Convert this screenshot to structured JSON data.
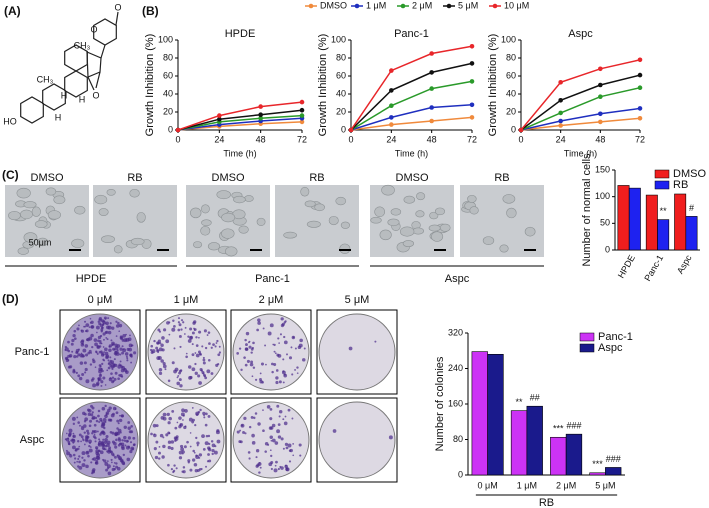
{
  "panel_labels": [
    "(A)",
    "(B)",
    "(C)",
    "(D)"
  ],
  "structure_labels": [
    "O",
    "O",
    "CH₃",
    "CH₃",
    "H",
    "H",
    "H",
    "HO",
    "O"
  ],
  "micrographs": {
    "conditions": [
      "DMSO",
      "RB",
      "DMSO",
      "RB",
      "DMSO",
      "RB"
    ],
    "cell_lines": [
      "HPDE",
      "Panc-1",
      "Aspc"
    ],
    "scale_bar": "50μm"
  },
  "colony_plates": {
    "columns": [
      "0 μM",
      "1 μM",
      "2 μM",
      "5 μM"
    ],
    "rows": [
      "Panc-1",
      "Aspc"
    ]
  },
  "chart_data": [
    {
      "type": "line",
      "title": "HPDE",
      "x_label": "Time (h)",
      "y_label": "Growth Inhibition (%)",
      "x": [
        0,
        24,
        48,
        72
      ],
      "xlim": [
        0,
        72
      ],
      "xticks": [
        0,
        24,
        48,
        72
      ],
      "ylim": [
        0,
        100
      ],
      "yticks": [
        0,
        20,
        40,
        60,
        80,
        100
      ],
      "legend": "top",
      "series": [
        {
          "name": "DMSO",
          "color": "#f08a3c",
          "values": [
            0,
            4,
            7,
            9
          ]
        },
        {
          "name": "1 μM",
          "color": "#1f2fbf",
          "values": [
            0,
            6,
            10,
            13
          ]
        },
        {
          "name": "2 μM",
          "color": "#2a9a2a",
          "values": [
            0,
            9,
            13,
            16
          ]
        },
        {
          "name": "5 μM",
          "color": "#111111",
          "values": [
            0,
            12,
            17,
            22
          ]
        },
        {
          "name": "10 μM",
          "color": "#e8262a",
          "values": [
            0,
            16,
            26,
            31
          ]
        }
      ]
    },
    {
      "type": "line",
      "title": "Panc-1",
      "x_label": "Time (h)",
      "y_label": "Growth Inhibition (%)",
      "x": [
        0,
        24,
        48,
        72
      ],
      "xlim": [
        0,
        72
      ],
      "xticks": [
        0,
        24,
        48,
        72
      ],
      "ylim": [
        0,
        100
      ],
      "yticks": [
        0,
        20,
        40,
        60,
        80,
        100
      ],
      "series": [
        {
          "color": "#f08a3c",
          "values": [
            0,
            6,
            10,
            14
          ]
        },
        {
          "color": "#1f2fbf",
          "values": [
            0,
            14,
            25,
            28
          ]
        },
        {
          "color": "#2a9a2a",
          "values": [
            0,
            27,
            46,
            54
          ]
        },
        {
          "color": "#111111",
          "values": [
            0,
            44,
            64,
            74
          ]
        },
        {
          "color": "#e8262a",
          "values": [
            0,
            66,
            85,
            93
          ]
        }
      ]
    },
    {
      "type": "line",
      "title": "Aspc",
      "x_label": "Time (h)",
      "y_label": "Growth Inhibition (%)",
      "x": [
        0,
        24,
        48,
        72
      ],
      "xlim": [
        0,
        72
      ],
      "xticks": [
        0,
        24,
        48,
        72
      ],
      "ylim": [
        0,
        100
      ],
      "yticks": [
        0,
        20,
        40,
        60,
        80,
        100
      ],
      "series": [
        {
          "color": "#f08a3c",
          "values": [
            0,
            5,
            9,
            13
          ]
        },
        {
          "color": "#1f2fbf",
          "values": [
            0,
            10,
            18,
            24
          ]
        },
        {
          "color": "#2a9a2a",
          "values": [
            0,
            19,
            37,
            47
          ]
        },
        {
          "color": "#111111",
          "values": [
            0,
            33,
            50,
            61
          ]
        },
        {
          "color": "#e8262a",
          "values": [
            0,
            53,
            68,
            78
          ]
        }
      ]
    },
    {
      "type": "bar",
      "y_label": "Number of normal cells",
      "categories": [
        "HPDE",
        "Panc-1",
        "Aspc"
      ],
      "xtick_rotation": -60,
      "ylim": [
        0,
        150
      ],
      "yticks": [
        0,
        50,
        100,
        150
      ],
      "legend": "upper right",
      "series": [
        {
          "name": "DMSO",
          "color": "#f01e1e",
          "values": [
            121,
            103,
            105
          ]
        },
        {
          "name": "RB",
          "color": "#1e22f0",
          "values": [
            116,
            57,
            63
          ],
          "significance": [
            null,
            "**",
            "#"
          ]
        }
      ]
    },
    {
      "type": "bar",
      "y_label": "Number of colonies",
      "x_label": "RB",
      "categories": [
        "0 μM",
        "1 μM",
        "2 μM",
        "5 μM"
      ],
      "ylim": [
        0,
        320
      ],
      "yticks": [
        0,
        80,
        160,
        240,
        320
      ],
      "legend": "upper right",
      "series": [
        {
          "name": "Panc-1",
          "color": "#cc33f5",
          "values": [
            278,
            145,
            85,
            5
          ],
          "significance": [
            null,
            "**",
            "***",
            "***"
          ]
        },
        {
          "name": "Aspc",
          "color": "#1a1a8c",
          "values": [
            272,
            155,
            92,
            17
          ],
          "significance": [
            null,
            "##",
            "###",
            "###"
          ]
        }
      ]
    }
  ]
}
